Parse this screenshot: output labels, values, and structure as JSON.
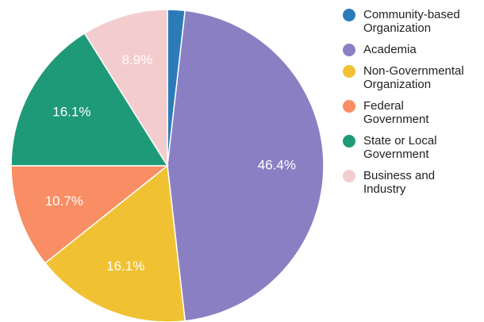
{
  "chart_data": {
    "type": "pie",
    "categories": [
      "Community-based\nOrganization",
      "Academia",
      "Non-Governmental\nOrganization",
      "Federal\nGovernment",
      "State or Local\nGovernment",
      "Business and\nIndustry"
    ],
    "values": [
      1.8,
      46.4,
      16.1,
      10.7,
      16.1,
      8.9
    ],
    "value_labels": [
      null,
      "46.4%",
      "16.1%",
      "10.7%",
      "16.1%",
      "8.9%"
    ],
    "colors": [
      "#2b7bb9",
      "#8b7fc4",
      "#f0c233",
      "#f98d64",
      "#1f9a78",
      "#f3cdcd"
    ],
    "legend": "right"
  }
}
